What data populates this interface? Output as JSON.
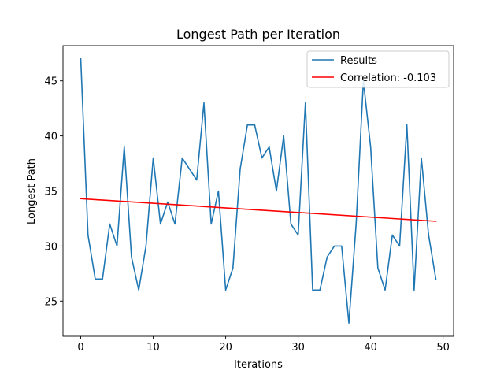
{
  "chart_data": {
    "type": "line",
    "title": "Longest Path per Iteration",
    "xlabel": "Iterations",
    "ylabel": "Longest Path",
    "xlim": [
      -2.45,
      51.45
    ],
    "ylim": [
      21.8,
      48.2
    ],
    "xticks": [
      0,
      10,
      20,
      30,
      40,
      50
    ],
    "yticks": [
      25,
      30,
      35,
      40,
      45
    ],
    "grid": false,
    "legend_position": "top-right",
    "series": [
      {
        "name": "Results",
        "color": "#1f77b4",
        "x": [
          0,
          1,
          2,
          3,
          4,
          5,
          6,
          7,
          8,
          9,
          10,
          11,
          12,
          13,
          14,
          15,
          16,
          17,
          18,
          19,
          20,
          21,
          22,
          23,
          24,
          25,
          26,
          27,
          28,
          29,
          30,
          31,
          32,
          33,
          34,
          35,
          36,
          37,
          38,
          39,
          40,
          41,
          42,
          43,
          44,
          45,
          46,
          47,
          48,
          49
        ],
        "y": [
          47,
          31,
          27,
          27,
          32,
          30,
          39,
          29,
          26,
          30,
          38,
          32,
          34,
          32,
          38,
          37,
          36,
          43,
          32,
          35,
          26,
          28,
          37,
          41,
          41,
          38,
          39,
          35,
          40,
          32,
          31,
          43,
          26,
          26,
          29,
          30,
          30,
          23,
          32,
          45,
          39,
          28,
          26,
          31,
          30,
          41,
          26,
          38,
          31,
          27
        ]
      },
      {
        "name": "Correlation: -0.103",
        "color": "#ff0000",
        "x": [
          0,
          49
        ],
        "y": [
          34.3,
          32.25
        ]
      }
    ]
  }
}
